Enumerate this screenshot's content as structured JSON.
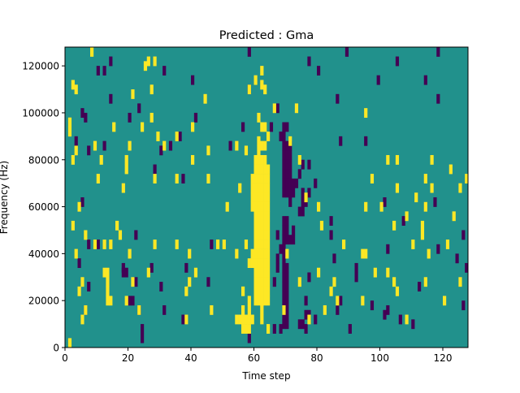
{
  "chart_data": {
    "type": "heatmap",
    "title": "Predicted : Gma",
    "xlabel": "Time step",
    "ylabel": "Frequency (Hz)",
    "xlim": [
      0,
      128
    ],
    "ylim": [
      0,
      128000
    ],
    "xticks": [
      0,
      20,
      40,
      60,
      80,
      100,
      120
    ],
    "xtick_labels": [
      "0",
      "20",
      "40",
      "60",
      "80",
      "100",
      "120"
    ],
    "yticks": [
      0,
      20000,
      40000,
      60000,
      80000,
      100000,
      120000
    ],
    "ytick_labels": [
      "0",
      "20000",
      "40000",
      "60000",
      "80000",
      "100000",
      "120000"
    ],
    "grid": false,
    "legend": "none",
    "colors": {
      "background": "#21918c",
      "high": "#fde725",
      "low": "#440154"
    },
    "background_value": 0,
    "cell_height_hz": 4000,
    "high_value": 1,
    "low_value": -1,
    "cells_high": [
      [
        8,
        124000
      ],
      [
        26,
        120000
      ],
      [
        28,
        120000
      ],
      [
        25,
        118000
      ],
      [
        62,
        116000
      ],
      [
        60,
        112000
      ],
      [
        27,
        108000
      ],
      [
        21,
        106000
      ],
      [
        2,
        110000
      ],
      [
        3,
        108000
      ],
      [
        58,
        108000
      ],
      [
        62,
        110000
      ],
      [
        63,
        108000
      ],
      [
        44,
        104000
      ],
      [
        73,
        100000
      ],
      [
        95,
        98000
      ],
      [
        27,
        96000
      ],
      [
        66,
        100000
      ],
      [
        61,
        96000
      ],
      [
        1,
        94000
      ],
      [
        1,
        90000
      ],
      [
        15,
        92000
      ],
      [
        24,
        92000
      ],
      [
        40,
        92000
      ],
      [
        62,
        92000
      ],
      [
        63,
        92000
      ],
      [
        64,
        88000
      ],
      [
        71,
        86000
      ],
      [
        29,
        88000
      ],
      [
        35,
        88000
      ],
      [
        31,
        84000
      ],
      [
        54,
        84000
      ],
      [
        61,
        86000
      ],
      [
        61,
        82000
      ],
      [
        62,
        84000
      ],
      [
        63,
        84000
      ],
      [
        3,
        82000
      ],
      [
        9,
        84000
      ],
      [
        20,
        84000
      ],
      [
        45,
        82000
      ],
      [
        57,
        82000
      ],
      [
        2,
        78000
      ],
      [
        11,
        78000
      ],
      [
        19,
        78000
      ],
      [
        40,
        78000
      ],
      [
        60,
        78000
      ],
      [
        61,
        78000
      ],
      [
        62,
        78000
      ],
      [
        63,
        78000
      ],
      [
        74,
        78000
      ],
      [
        102,
        78000
      ],
      [
        105,
        78000
      ],
      [
        116,
        78000
      ],
      [
        19,
        74000
      ],
      [
        60,
        74000
      ],
      [
        61,
        74000
      ],
      [
        62,
        74000
      ],
      [
        63,
        74000
      ],
      [
        64,
        74000
      ],
      [
        122,
        74000
      ],
      [
        10,
        70000
      ],
      [
        28,
        70000
      ],
      [
        35,
        70000
      ],
      [
        45,
        70000
      ],
      [
        59,
        70000
      ],
      [
        60,
        70000
      ],
      [
        61,
        70000
      ],
      [
        62,
        70000
      ],
      [
        63,
        70000
      ],
      [
        64,
        70000
      ],
      [
        97,
        70000
      ],
      [
        114,
        70000
      ],
      [
        127,
        70000
      ],
      [
        18,
        66000
      ],
      [
        55,
        66000
      ],
      [
        59,
        66000
      ],
      [
        60,
        66000
      ],
      [
        61,
        66000
      ],
      [
        62,
        66000
      ],
      [
        63,
        66000
      ],
      [
        64,
        66000
      ],
      [
        105,
        66000
      ],
      [
        116,
        66000
      ],
      [
        125,
        66000
      ],
      [
        59,
        62000
      ],
      [
        60,
        62000
      ],
      [
        61,
        62000
      ],
      [
        62,
        62000
      ],
      [
        63,
        62000
      ],
      [
        64,
        62000
      ],
      [
        76,
        62000
      ],
      [
        111,
        62000
      ],
      [
        4,
        58000
      ],
      [
        51,
        58000
      ],
      [
        59,
        58000
      ],
      [
        60,
        58000
      ],
      [
        61,
        58000
      ],
      [
        62,
        58000
      ],
      [
        63,
        58000
      ],
      [
        64,
        58000
      ],
      [
        80,
        58000
      ],
      [
        95,
        58000
      ],
      [
        100,
        58000
      ],
      [
        114,
        58000
      ],
      [
        60,
        54000
      ],
      [
        61,
        54000
      ],
      [
        62,
        54000
      ],
      [
        63,
        54000
      ],
      [
        64,
        54000
      ],
      [
        108,
        54000
      ],
      [
        123,
        54000
      ],
      [
        2,
        50000
      ],
      [
        16,
        50000
      ],
      [
        60,
        50000
      ],
      [
        61,
        50000
      ],
      [
        62,
        50000
      ],
      [
        63,
        50000
      ],
      [
        64,
        50000
      ],
      [
        81,
        50000
      ],
      [
        104,
        50000
      ],
      [
        113,
        50000
      ],
      [
        6,
        46000
      ],
      [
        17,
        46000
      ],
      [
        60,
        46000
      ],
      [
        61,
        46000
      ],
      [
        62,
        46000
      ],
      [
        63,
        46000
      ],
      [
        64,
        46000
      ],
      [
        113,
        46000
      ],
      [
        9,
        42000
      ],
      [
        12,
        42000
      ],
      [
        14,
        42000
      ],
      [
        28,
        42000
      ],
      [
        35,
        42000
      ],
      [
        48,
        42000
      ],
      [
        50,
        42000
      ],
      [
        57,
        42000
      ],
      [
        60,
        42000
      ],
      [
        61,
        42000
      ],
      [
        62,
        42000
      ],
      [
        63,
        42000
      ],
      [
        64,
        42000
      ],
      [
        88,
        42000
      ],
      [
        110,
        42000
      ],
      [
        121,
        42000
      ],
      [
        3,
        38000
      ],
      [
        20,
        38000
      ],
      [
        39,
        38000
      ],
      [
        54,
        38000
      ],
      [
        59,
        38000
      ],
      [
        60,
        38000
      ],
      [
        61,
        38000
      ],
      [
        62,
        38000
      ],
      [
        63,
        38000
      ],
      [
        64,
        38000
      ],
      [
        70,
        38000
      ],
      [
        94,
        38000
      ],
      [
        95,
        38000
      ],
      [
        115,
        38000
      ],
      [
        58,
        34000
      ],
      [
        59,
        34000
      ],
      [
        60,
        34000
      ],
      [
        61,
        34000
      ],
      [
        62,
        34000
      ],
      [
        63,
        34000
      ],
      [
        64,
        34000
      ],
      [
        12,
        30000
      ],
      [
        13,
        30000
      ],
      [
        26,
        30000
      ],
      [
        41,
        30000
      ],
      [
        60,
        30000
      ],
      [
        61,
        30000
      ],
      [
        62,
        30000
      ],
      [
        63,
        30000
      ],
      [
        64,
        30000
      ],
      [
        80,
        30000
      ],
      [
        98,
        30000
      ],
      [
        102,
        30000
      ],
      [
        5,
        26000
      ],
      [
        13,
        26000
      ],
      [
        21,
        26000
      ],
      [
        39,
        26000
      ],
      [
        60,
        26000
      ],
      [
        61,
        26000
      ],
      [
        62,
        26000
      ],
      [
        63,
        26000
      ],
      [
        64,
        26000
      ],
      [
        74,
        26000
      ],
      [
        85,
        26000
      ],
      [
        104,
        26000
      ],
      [
        114,
        26000
      ],
      [
        125,
        26000
      ],
      [
        4,
        22000
      ],
      [
        13,
        22000
      ],
      [
        38,
        22000
      ],
      [
        56,
        22000
      ],
      [
        60,
        22000
      ],
      [
        61,
        22000
      ],
      [
        62,
        22000
      ],
      [
        63,
        22000
      ],
      [
        64,
        22000
      ],
      [
        84,
        22000
      ],
      [
        105,
        22000
      ],
      [
        13,
        18000
      ],
      [
        14,
        18000
      ],
      [
        19,
        18000
      ],
      [
        58,
        18000
      ],
      [
        60,
        18000
      ],
      [
        61,
        18000
      ],
      [
        62,
        18000
      ],
      [
        63,
        18000
      ],
      [
        64,
        18000
      ],
      [
        86,
        18000
      ],
      [
        94,
        18000
      ],
      [
        120,
        18000
      ],
      [
        6,
        14000
      ],
      [
        23,
        14000
      ],
      [
        46,
        14000
      ],
      [
        56,
        14000
      ],
      [
        58,
        14000
      ],
      [
        62,
        14000
      ],
      [
        69,
        14000
      ],
      [
        82,
        14000
      ],
      [
        5,
        10000
      ],
      [
        38,
        10000
      ],
      [
        54,
        10000
      ],
      [
        55,
        10000
      ],
      [
        56,
        10000
      ],
      [
        57,
        10000
      ],
      [
        58,
        10000
      ],
      [
        59,
        10000
      ],
      [
        62,
        10000
      ],
      [
        77,
        10000
      ],
      [
        108,
        10000
      ],
      [
        56,
        6000
      ],
      [
        57,
        6000
      ],
      [
        58,
        6000
      ],
      [
        64,
        6000
      ],
      [
        1,
        0
      ]
    ],
    "cells_low": [
      [
        58,
        124000
      ],
      [
        89,
        124000
      ],
      [
        118,
        124000
      ],
      [
        14,
        120000
      ],
      [
        77,
        120000
      ],
      [
        105,
        120000
      ],
      [
        10,
        116000
      ],
      [
        12,
        116000
      ],
      [
        31,
        116000
      ],
      [
        80,
        116000
      ],
      [
        40,
        112000
      ],
      [
        99,
        112000
      ],
      [
        114,
        112000
      ],
      [
        58,
        108000
      ],
      [
        86,
        104000
      ],
      [
        118,
        104000
      ],
      [
        14,
        104000
      ],
      [
        67,
        100000
      ],
      [
        5,
        98000
      ],
      [
        6,
        96000
      ],
      [
        20,
        96000
      ],
      [
        41,
        96000
      ],
      [
        23,
        100000
      ],
      [
        69,
        92000
      ],
      [
        56,
        92000
      ],
      [
        65,
        92000
      ],
      [
        70,
        92000
      ],
      [
        68,
        88000
      ],
      [
        69,
        88000
      ],
      [
        36,
        88000
      ],
      [
        3,
        86000
      ],
      [
        87,
        86000
      ],
      [
        95,
        86000
      ],
      [
        69,
        84000
      ],
      [
        70,
        84000
      ],
      [
        71,
        84000
      ],
      [
        12,
        84000
      ],
      [
        33,
        84000
      ],
      [
        52,
        84000
      ],
      [
        69,
        80000
      ],
      [
        70,
        80000
      ],
      [
        71,
        80000
      ],
      [
        7,
        82000
      ],
      [
        30,
        82000
      ],
      [
        69,
        76000
      ],
      [
        70,
        76000
      ],
      [
        71,
        76000
      ],
      [
        28,
        74000
      ],
      [
        75,
        76000
      ],
      [
        77,
        76000
      ],
      [
        69,
        72000
      ],
      [
        70,
        72000
      ],
      [
        71,
        72000
      ],
      [
        74,
        72000
      ],
      [
        37,
        70000
      ],
      [
        69,
        68000
      ],
      [
        70,
        68000
      ],
      [
        71,
        68000
      ],
      [
        72,
        68000
      ],
      [
        73,
        68000
      ],
      [
        79,
        68000
      ],
      [
        69,
        64000
      ],
      [
        70,
        64000
      ],
      [
        71,
        64000
      ],
      [
        72,
        64000
      ],
      [
        75,
        64000
      ],
      [
        77,
        64000
      ],
      [
        5,
        60000
      ],
      [
        71,
        60000
      ],
      [
        75,
        60000
      ],
      [
        76,
        60000
      ],
      [
        101,
        60000
      ],
      [
        117,
        60000
      ],
      [
        74,
        56000
      ],
      [
        75,
        56000
      ],
      [
        69,
        52000
      ],
      [
        70,
        52000
      ],
      [
        84,
        52000
      ],
      [
        107,
        52000
      ],
      [
        69,
        48000
      ],
      [
        70,
        48000
      ],
      [
        72,
        48000
      ],
      [
        22,
        46000
      ],
      [
        67,
        46000
      ],
      [
        84,
        46000
      ],
      [
        126,
        46000
      ],
      [
        69,
        44000
      ],
      [
        70,
        44000
      ],
      [
        71,
        44000
      ],
      [
        72,
        44000
      ],
      [
        7,
        42000
      ],
      [
        10,
        42000
      ],
      [
        46,
        42000
      ],
      [
        68,
        40000
      ],
      [
        69,
        40000
      ],
      [
        102,
        40000
      ],
      [
        118,
        40000
      ],
      [
        67,
        36000
      ],
      [
        69,
        36000
      ],
      [
        85,
        36000
      ],
      [
        124,
        36000
      ],
      [
        4,
        34000
      ],
      [
        69,
        32000
      ],
      [
        70,
        32000
      ],
      [
        18,
        32000
      ],
      [
        27,
        32000
      ],
      [
        38,
        32000
      ],
      [
        67,
        32000
      ],
      [
        92,
        32000
      ],
      [
        127,
        32000
      ],
      [
        18,
        30000
      ],
      [
        19,
        30000
      ],
      [
        69,
        28000
      ],
      [
        70,
        28000
      ],
      [
        77,
        28000
      ],
      [
        92,
        28000
      ],
      [
        22,
        26000
      ],
      [
        45,
        26000
      ],
      [
        66,
        26000
      ],
      [
        69,
        24000
      ],
      [
        70,
        24000
      ],
      [
        7,
        24000
      ],
      [
        30,
        24000
      ],
      [
        112,
        24000
      ],
      [
        69,
        20000
      ],
      [
        70,
        20000
      ],
      [
        20,
        18000
      ],
      [
        21,
        18000
      ],
      [
        87,
        18000
      ],
      [
        76,
        18000
      ],
      [
        69,
        16000
      ],
      [
        70,
        16000
      ],
      [
        97,
        16000
      ],
      [
        126,
        16000
      ],
      [
        6,
        14000
      ],
      [
        23,
        14000
      ],
      [
        31,
        14000
      ],
      [
        86,
        14000
      ],
      [
        102,
        14000
      ],
      [
        69,
        12000
      ],
      [
        70,
        12000
      ],
      [
        76,
        12000
      ],
      [
        77,
        12000
      ],
      [
        101,
        12000
      ],
      [
        37,
        10000
      ],
      [
        79,
        10000
      ],
      [
        106,
        10000
      ],
      [
        69,
        8000
      ],
      [
        70,
        8000
      ],
      [
        74,
        8000
      ],
      [
        75,
        8000
      ],
      [
        110,
        8000
      ],
      [
        24,
        6000
      ],
      [
        66,
        6000
      ],
      [
        68,
        6000
      ],
      [
        76,
        6000
      ],
      [
        90,
        6000
      ],
      [
        24,
        2000
      ],
      [
        58,
        2000
      ]
    ]
  }
}
